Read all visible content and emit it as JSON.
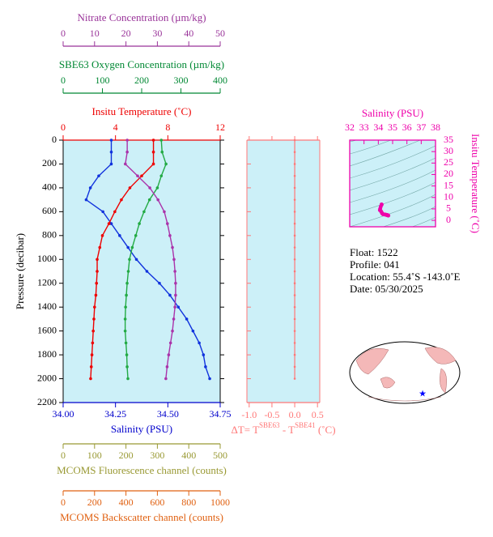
{
  "chart_data": [
    {
      "type": "line",
      "ylabel": "Pressure (decibar)",
      "ylim": [
        0,
        2200
      ],
      "yticks": [
        0,
        200,
        400,
        600,
        800,
        1000,
        1200,
        1400,
        1600,
        1800,
        2000,
        2200
      ],
      "y": [
        0,
        100,
        200,
        300,
        400,
        500,
        600,
        700,
        800,
        900,
        1000,
        1100,
        1200,
        1300,
        1400,
        1500,
        1600,
        1700,
        1800,
        1900,
        2000
      ],
      "axes": [
        {
          "label": "Nitrate Concentration (µm/kg)",
          "color": "#993399",
          "xlim": [
            0,
            50
          ],
          "xticks": [
            0,
            10,
            20,
            30,
            40,
            50
          ]
        },
        {
          "label": "SBE63 Oxygen Concentration (µm/kg)",
          "color": "#008833",
          "xlim": [
            0,
            400
          ],
          "xticks": [
            0,
            100,
            200,
            300,
            400
          ]
        },
        {
          "label": "Insitu Temperature (˚C)",
          "color": "#ee0000",
          "xlim": [
            0,
            12
          ],
          "xticks": [
            0,
            4,
            8,
            12
          ]
        },
        {
          "label": "Salinity (PSU)",
          "color": "#0000cc",
          "xlim": [
            34,
            34.75
          ],
          "xticks": [
            {
              "value": 34,
              "label": "34.00"
            },
            {
              "value": 34.25,
              "label": "34.25"
            },
            {
              "value": 34.5,
              "label": "34.50"
            },
            {
              "value": 34.75,
              "label": "34.75"
            }
          ]
        },
        {
          "label": "MCOMS Fluorescence channel (counts)",
          "color": "#999933",
          "xlim": [
            0,
            500
          ],
          "xticks": [
            0,
            100,
            200,
            300,
            400,
            500
          ]
        },
        {
          "label": "MCOMS Backscatter channel (counts)",
          "color": "#e06010",
          "xlim": [
            0,
            1000
          ],
          "xticks": [
            0,
            200,
            400,
            600,
            800,
            1000
          ]
        }
      ],
      "series": [
        {
          "axis": 3,
          "color": "#1133dd",
          "values": [
            34.23,
            34.23,
            34.23,
            34.17,
            34.13,
            34.11,
            34.19,
            34.23,
            34.27,
            34.31,
            34.35,
            34.4,
            34.46,
            34.51,
            34.55,
            34.59,
            34.62,
            34.65,
            34.67,
            34.68,
            34.7
          ]
        },
        {
          "axis": 2,
          "color": "#ee0000",
          "values": [
            6.9,
            6.9,
            6.9,
            6.0,
            5.1,
            4.45,
            3.95,
            3.5,
            3.0,
            2.8,
            2.6,
            2.6,
            2.55,
            2.5,
            2.4,
            2.35,
            2.3,
            2.25,
            2.2,
            2.15,
            2.1
          ]
        },
        {
          "axis": 1,
          "color": "#22aa44",
          "values": [
            250,
            252,
            262,
            250,
            240,
            220,
            206,
            194,
            185,
            176,
            169,
            166,
            163,
            161,
            159,
            158,
            158,
            160,
            162,
            163,
            165
          ]
        },
        {
          "axis": 0,
          "color": "#aa33aa",
          "values": [
            20.4,
            20.4,
            19.8,
            23.7,
            27.6,
            30.2,
            32.2,
            33.2,
            34,
            34.8,
            35.3,
            35.6,
            35.8,
            35.8,
            35.6,
            35.2,
            34.8,
            34.2,
            33.6,
            33.1,
            32.7
          ]
        }
      ]
    },
    {
      "type": "line",
      "xlabel": [
        "ΔT= T",
        "SBE63",
        " - T",
        "SBE41",
        " (˚C)"
      ],
      "color": "#ff7777",
      "xlim": [
        -1.05,
        0.55
      ],
      "xticks": [
        {
          "value": -1,
          "label": "-1.0"
        },
        {
          "value": -0.5,
          "label": "-0.5"
        },
        {
          "value": 0,
          "label": "0.0"
        },
        {
          "value": 0.5,
          "label": "0.5"
        }
      ],
      "values": [
        0,
        0,
        0,
        0,
        0,
        0,
        0,
        0,
        0,
        0,
        0,
        0,
        0,
        0,
        0,
        0,
        0,
        0,
        0,
        0,
        0
      ]
    },
    {
      "type": "scatter",
      "xlabel": "Salinity (PSU)",
      "ylabel": "Insitu Temperature (˚C)",
      "color": "#ee00aa",
      "xlim": [
        32,
        38
      ],
      "xticks": [
        32,
        33,
        34,
        35,
        36,
        37,
        38
      ],
      "ylim": [
        -2.8,
        35
      ],
      "yticks": [
        0,
        5,
        10,
        15,
        20,
        25,
        30,
        35
      ]
    }
  ],
  "float_info": [
    "Float:  1522",
    "Profile:  041",
    "Location:  55.4˚S  -143.0˚E",
    "Date:  05/30/2025"
  ]
}
